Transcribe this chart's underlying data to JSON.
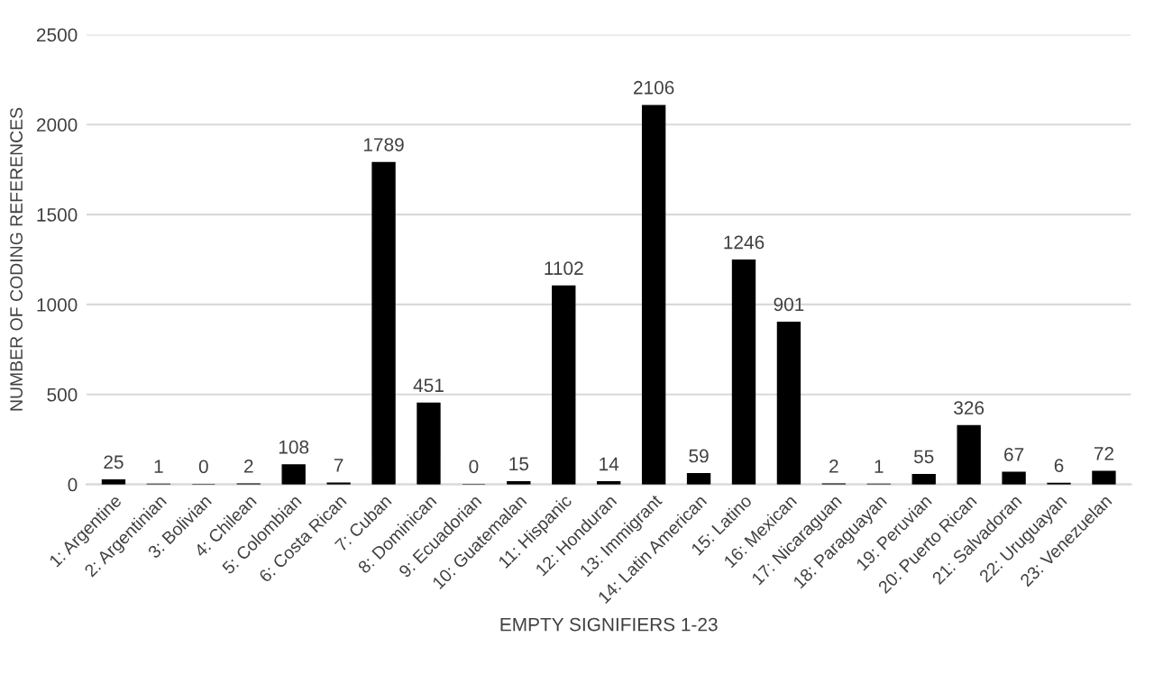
{
  "chart_data": {
    "type": "bar",
    "xlabel": "EMPTY SIGNIFIERS 1-23",
    "ylabel": "NUMBER OF CODING REFERENCES",
    "categories": [
      "1: Argentine",
      "2: Argentinian",
      "3: Bolivian",
      "4: Chilean",
      "5: Colombian",
      "6: Costa Rican",
      "7: Cuban",
      "8: Dominican",
      "9: Ecuadorian",
      "10: Guatemalan",
      "11: Hispanic",
      "12: Honduran",
      "13: Immigrant",
      "14: Latin American",
      "15: Latino",
      "16: Mexican",
      "17: Nicaraguan",
      "18: Paraguayan",
      "19: Peruvian",
      "20: Puerto Rican",
      "21: Salvadoran",
      "22: Uruguayan",
      "23: Venezuelan"
    ],
    "values": [
      25,
      1,
      0,
      2,
      108,
      7,
      1789,
      451,
      0,
      15,
      1102,
      14,
      2106,
      59,
      1246,
      901,
      2,
      1,
      55,
      326,
      67,
      6,
      72
    ],
    "color": "#000000",
    "ylim": [
      0,
      2500
    ],
    "yticks": [
      0,
      500,
      1000,
      1500,
      2000,
      2500
    ],
    "grid": "y",
    "data_labels": true
  }
}
